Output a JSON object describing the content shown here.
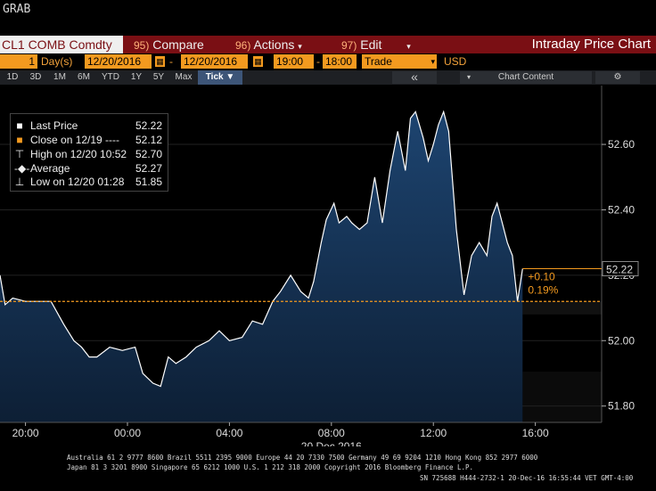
{
  "title": "GRAB",
  "command_bar": {
    "security": "CL1 COMB Comdty",
    "compare_num": "95)",
    "compare": "Compare",
    "actions_num": "96)",
    "actions": "Actions",
    "edit_num": "97)",
    "edit": "Edit",
    "chart_title": "Intraday Price Chart"
  },
  "params": {
    "period_count": "1",
    "period_unit": "Day(s)",
    "start_date": "12/20/2016",
    "end_date": "12/20/2016",
    "start_time": "19:00",
    "end_time": "18:00",
    "event": "Trade",
    "currency": "USD"
  },
  "toolbar": {
    "ranges": [
      "1D",
      "3D",
      "1M",
      "6M",
      "YTD",
      "1Y",
      "5Y",
      "Max"
    ],
    "tick": "Tick ▼",
    "collapse": "«",
    "chart_content": "Chart Content",
    "settings": "⚙"
  },
  "legend": {
    "last": {
      "label": "Last Price",
      "value": "52.22",
      "color": "#ffffff"
    },
    "close": {
      "label": "Close on 12/19 ----",
      "value": "52.12",
      "color": "#f39a1f"
    },
    "high": {
      "label": "High on 12/20 10:52",
      "value": "52.70"
    },
    "average": {
      "label": "Average",
      "value": "52.27"
    },
    "low": {
      "label": "Low on 12/20 01:28",
      "value": "51.85"
    }
  },
  "annotations": {
    "last_tag": "52.22",
    "change": "+0.10",
    "change_pct": "0.19%"
  },
  "chart_data": {
    "type": "area",
    "ylim": [
      51.75,
      52.78
    ],
    "y_ticks": [
      "52.60",
      "52.40",
      "52.20",
      "52.00",
      "51.80"
    ],
    "x_ticks": [
      "20:00",
      "00:00",
      "04:00",
      "08:00",
      "12:00",
      "16:00"
    ],
    "x_hours": [
      20,
      24,
      28,
      32,
      36,
      40
    ],
    "xlabel": "20 Dec 2016",
    "reference_close": 52.12,
    "series": [
      {
        "name": "Last Price",
        "color": "#ffffff",
        "x_hours": [
          19.0,
          19.2,
          19.5,
          20.0,
          20.5,
          21.0,
          21.5,
          21.9,
          22.2,
          22.5,
          22.8,
          23.3,
          23.8,
          24.3,
          24.6,
          25.0,
          25.3,
          25.6,
          25.9,
          26.3,
          26.7,
          27.2,
          27.6,
          28.0,
          28.5,
          28.9,
          29.3,
          29.7,
          30.0,
          30.4,
          30.8,
          31.1,
          31.3,
          31.6,
          31.8,
          32.1,
          32.3,
          32.6,
          32.8,
          33.1,
          33.4,
          33.7,
          34.0,
          34.3,
          34.6,
          34.9,
          35.1,
          35.3,
          35.6,
          35.8,
          36.0,
          36.2,
          36.4,
          36.6,
          36.9,
          37.2,
          37.5,
          37.8,
          38.1,
          38.3,
          38.5,
          38.7,
          38.9,
          39.0,
          39.1,
          39.3,
          39.5
        ],
        "values": [
          52.2,
          52.11,
          52.13,
          52.12,
          52.12,
          52.12,
          52.05,
          52.0,
          51.98,
          51.95,
          51.95,
          51.98,
          51.97,
          51.98,
          51.9,
          51.87,
          51.86,
          51.95,
          51.93,
          51.95,
          51.98,
          52.0,
          52.03,
          52.0,
          52.01,
          52.06,
          52.05,
          52.12,
          52.15,
          52.2,
          52.15,
          52.13,
          52.18,
          52.3,
          52.37,
          52.42,
          52.36,
          52.38,
          52.36,
          52.34,
          52.36,
          52.5,
          52.36,
          52.52,
          52.64,
          52.52,
          52.68,
          52.7,
          52.62,
          52.55,
          52.6,
          52.66,
          52.7,
          52.64,
          52.34,
          52.14,
          52.26,
          52.3,
          52.26,
          52.38,
          52.42,
          52.36,
          52.3,
          52.28,
          52.26,
          52.12,
          52.22
        ]
      }
    ]
  },
  "footer": {
    "line1": "Australia 61 2 9777 8600 Brazil 5511 2395 9000 Europe 44 20 7330 7500 Germany 49 69 9204 1210 Hong Kong 852 2977 6000",
    "line2": "Japan 81 3 3201 8900        Singapore 65 6212 1000        U.S. 1 212 318 2000        Copyright 2016 Bloomberg Finance L.P.",
    "line3": "SN 725688 H444-2732-1 20-Dec-16 16:55:44 VET  GMT-4:00"
  },
  "colors": {
    "accent_orange": "#f39a1f",
    "command_red": "#7a0f14",
    "area_fill": "#1a3a5e"
  }
}
